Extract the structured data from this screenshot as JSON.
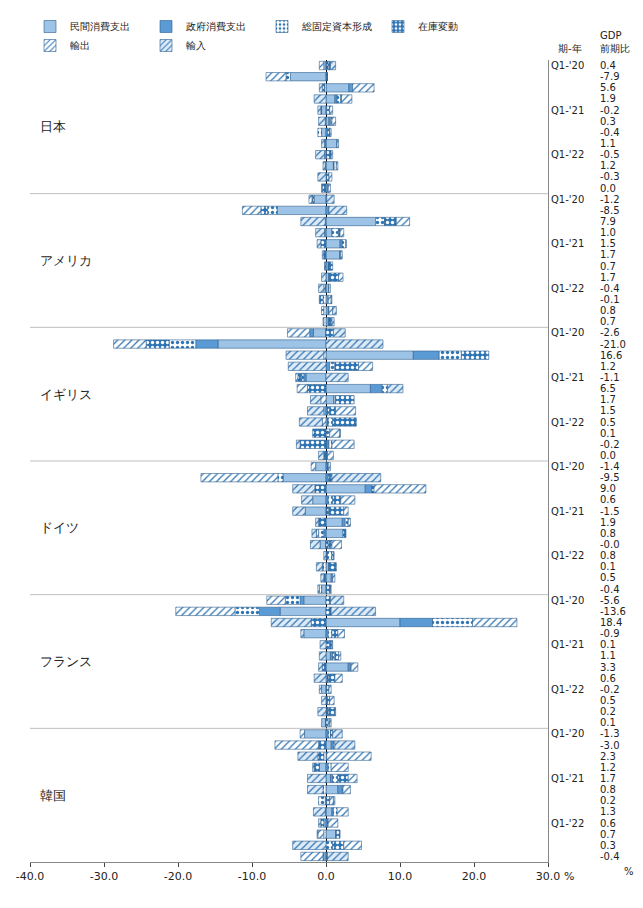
{
  "chart_data": {
    "type": "bar",
    "orientation": "horizontal",
    "stacked": true,
    "grid": false,
    "legend": "top",
    "xlabel": "%",
    "xlim": [
      -40,
      30
    ],
    "xticks": [
      {
        "value": -40,
        "label": "-40.0"
      },
      {
        "value": -30,
        "label": "-30.0"
      },
      {
        "value": -20,
        "label": "-20.0"
      },
      {
        "value": -10,
        "label": "-10.0"
      },
      {
        "value": 0,
        "label": "0.0"
      },
      {
        "value": 10,
        "label": "10.0"
      },
      {
        "value": 20,
        "label": "20.0"
      },
      {
        "value": 30,
        "label": "30.0"
      }
    ],
    "ylabel": "期-年",
    "groups": [
      "日本",
      "アメリカ",
      "イギリス",
      "ドイツ",
      "フランス",
      "韓国"
    ],
    "categories": [
      "Q1-'20",
      null,
      null,
      null,
      "Q1-'21",
      null,
      null,
      null,
      "Q1-'22",
      null,
      null,
      null,
      "Q1-'20",
      null,
      null,
      null,
      "Q1-'21",
      null,
      null,
      null,
      "Q1-'22",
      null,
      null,
      null,
      "Q1-'20",
      null,
      null,
      null,
      "Q1-'21",
      null,
      null,
      null,
      "Q1-'22",
      null,
      null,
      null,
      "Q1-'20",
      null,
      null,
      null,
      "Q1-'21",
      null,
      null,
      null,
      "Q1-'22",
      null,
      null,
      null,
      "Q1-'20",
      null,
      null,
      null,
      "Q1-'21",
      null,
      null,
      null,
      "Q1-'22",
      null,
      null,
      null,
      "Q1-'20",
      null,
      null,
      null,
      "Q1-'21",
      null,
      null,
      null,
      "Q1-'22",
      null,
      null,
      null
    ],
    "series": [
      {
        "name": "民間消費支出",
        "color": "#9dc3e6",
        "values": [
          -0.3,
          -4.8,
          3.1,
          1.2,
          -0.6,
          0.4,
          -0.6,
          1.5,
          -0.2,
          1.0,
          0.0,
          0.3,
          -1.6,
          -6.6,
          6.7,
          0.8,
          1.9,
          1.9,
          0.3,
          0.4,
          0.4,
          0.3,
          0.3,
          0.3,
          -1.7,
          -14.6,
          11.8,
          0.0,
          -2.7,
          6.0,
          1.1,
          -0.3,
          0.2,
          0.0,
          0.1,
          0.0,
          -1.4,
          -5.8,
          5.3,
          -1.8,
          -2.8,
          2.2,
          2.3,
          -0.8,
          0.1,
          0.4,
          0.7,
          -0.6,
          -3.0,
          -6.2,
          10.0,
          -3.0,
          0.0,
          0.6,
          3.0,
          0.2,
          -0.6,
          0.1,
          0.1,
          -0.6,
          -2.9,
          0.7,
          0.0,
          -0.9,
          0.6,
          1.6,
          -0.1,
          0.8,
          -0.3,
          1.3,
          0.0,
          -0.3
        ]
      },
      {
        "name": "政府消費支出",
        "color": "#5b9bd5",
        "values": [
          0.1,
          0.1,
          0.5,
          0.3,
          -0.1,
          0.2,
          0.2,
          0.0,
          0.1,
          0.1,
          0.0,
          0.0,
          0.1,
          0.4,
          -0.1,
          -0.2,
          0.3,
          0.0,
          0.1,
          0.0,
          0.0,
          0.0,
          0.1,
          0.1,
          -0.5,
          -3.0,
          3.5,
          0.5,
          -0.3,
          1.6,
          0.0,
          0.2,
          0.1,
          0.0,
          0.3,
          0.1,
          0.2,
          0.3,
          0.9,
          0.3,
          0.1,
          0.4,
          -0.3,
          0.0,
          0.1,
          0.0,
          0.2,
          0.1,
          -0.5,
          -2.8,
          4.4,
          0.3,
          0.0,
          0.3,
          0.3,
          0.0,
          0.1,
          0.1,
          0.1,
          0.0,
          0.3,
          0.3,
          0.1,
          0.3,
          0.3,
          0.6,
          0.1,
          0.2,
          0.2,
          0.1,
          0.0,
          0.1
        ]
      },
      {
        "name": "総固定資本形成",
        "color": "#ffffff",
        "marker": "dots",
        "values": [
          0.2,
          -0.6,
          -0.2,
          0.5,
          0.1,
          0.2,
          -0.5,
          -0.1,
          0.0,
          0.3,
          0.1,
          0.0,
          -0.2,
          -1.3,
          1.2,
          0.9,
          0.5,
          0.1,
          0.0,
          0.1,
          0.2,
          -0.4,
          -0.3,
          -0.3,
          0.0,
          -3.6,
          3.0,
          0.7,
          -0.3,
          0.7,
          0.2,
          0.3,
          0.6,
          0.5,
          0.4,
          0.1,
          0.1,
          -0.7,
          0.3,
          0.6,
          0.3,
          0.4,
          -0.7,
          0.3,
          0.6,
          -0.4,
          -0.1,
          -0.3,
          -2.0,
          -3.3,
          5.4,
          0.5,
          0.5,
          0.3,
          0.1,
          0.1,
          0.0,
          0.0,
          0.1,
          0.0,
          0.3,
          0.2,
          -0.3,
          0.4,
          0.7,
          -0.4,
          -0.9,
          0.5,
          0.1,
          -0.3,
          0.9,
          0.1
        ]
      },
      {
        "name": "在庫変動",
        "color": "#2e75b6",
        "marker": "dots",
        "values": [
          0.3,
          0.1,
          -0.3,
          0.1,
          0.4,
          -0.1,
          0.3,
          -0.1,
          0.6,
          -0.1,
          0.3,
          -0.5,
          -0.1,
          -0.9,
          1.6,
          0.2,
          -0.7,
          -0.3,
          0.5,
          1.2,
          -0.1,
          -0.5,
          -0.3,
          0.4,
          1.0,
          -3.1,
          3.7,
          3.2,
          -0.5,
          -2.5,
          2.5,
          0.8,
          3.2,
          -1.8,
          -3.5,
          -0.3,
          0.0,
          0.5,
          -1.5,
          1.1,
          2.0,
          -1.0,
          0.4,
          0.5,
          0.2,
          1.0,
          -0.2,
          0.5,
          0.6,
          0.7,
          -2.0,
          0.8,
          0.3,
          0.5,
          -0.5,
          0.9,
          0.3,
          0.3,
          0.9,
          0.3,
          0.3,
          -1.0,
          -0.8,
          -0.7,
          1.4,
          0.1,
          0.4,
          -0.1,
          -0.4,
          0.5,
          1.5,
          -0.1
        ]
      },
      {
        "name": "輸出",
        "color": "#ffffff",
        "marker": "hatch",
        "values": [
          -0.6,
          -2.7,
          2.9,
          1.4,
          0.4,
          0.5,
          0.0,
          0.2,
          0.2,
          0.2,
          0.4,
          0.3,
          -0.4,
          -2.5,
          1.8,
          0.5,
          0.0,
          0.2,
          -0.1,
          0.6,
          -0.2,
          0.4,
          0.5,
          -0.1,
          -3.0,
          -4.4,
          -0.3,
          1.9,
          -0.3,
          -1.4,
          -0.7,
          2.7,
          -0.5,
          1.4,
          3.0,
          0.8,
          -0.6,
          -10.4,
          7.0,
          1.9,
          0.6,
          0.3,
          -0.3,
          1.3,
          0.1,
          -0.1,
          0.3,
          -0.2,
          -2.5,
          -8.0,
          6.0,
          0.9,
          0.1,
          0.3,
          0.9,
          1.0,
          0.3,
          0.6,
          0.1,
          0.2,
          -0.6,
          -5.9,
          6.0,
          2.3,
          1.2,
          1.0,
          0.5,
          1.5,
          1.3,
          -0.8,
          2.4,
          -3.0
        ]
      },
      {
        "name": "輸入",
        "color": "#deebf7",
        "marker": "hatch",
        "values": [
          0.7,
          0.0,
          -0.4,
          -1.6,
          -0.4,
          -0.9,
          0.2,
          -0.4,
          -1.2,
          -0.3,
          -1.1,
          -0.1,
          1.0,
          2.4,
          -3.3,
          -1.2,
          -0.5,
          -0.2,
          -0.1,
          -0.6,
          -0.7,
          0.1,
          0.5,
          0.3,
          1.6,
          7.7,
          -5.1,
          -5.1,
          3.0,
          2.1,
          -1.4,
          -2.2,
          -3.1,
          0.0,
          -0.5,
          -0.7,
          0.3,
          6.6,
          -3.0,
          -1.5,
          -1.7,
          -0.4,
          -0.6,
          -1.3,
          -0.3,
          -0.8,
          -0.4,
          0.1,
          1.8,
          6.0,
          -5.4,
          -0.4,
          -0.8,
          -0.9,
          -0.5,
          -1.6,
          -0.3,
          -0.6,
          -1.1,
          0.2,
          1.3,
          2.7,
          -2.7,
          -0.2,
          -2.5,
          -2.1,
          0.2,
          -1.6,
          -0.3,
          -0.1,
          -4.5,
          2.8
        ]
      }
    ],
    "gdp_growth": {
      "title": [
        "GDP",
        "前期比"
      ],
      "unit": "%",
      "values": [
        0.4,
        -7.9,
        5.6,
        1.9,
        -0.2,
        0.3,
        -0.4,
        1.1,
        -0.5,
        1.2,
        -0.3,
        0,
        -1.2,
        -8.5,
        7.9,
        1.0,
        1.5,
        1.7,
        0.7,
        1.7,
        -0.4,
        -0.1,
        0.8,
        0.7,
        -2.6,
        -21.0,
        16.6,
        1.2,
        -1.1,
        6.5,
        1.7,
        1.5,
        0.5,
        0.1,
        -0.2,
        0,
        -1.4,
        -9.5,
        9.0,
        0.6,
        -1.5,
        1.9,
        0.8,
        0,
        0.8,
        0.1,
        0.5,
        -0.4,
        -5.6,
        -13.6,
        18.4,
        -0.9,
        0.1,
        1.1,
        3.3,
        0.6,
        -0.2,
        0.5,
        0.2,
        0.1,
        -1.3,
        -3.0,
        2.3,
        1.2,
        1.7,
        0.8,
        0.2,
        1.3,
        0.6,
        0.7,
        0.3,
        -0.4
      ],
      "value_labels": [
        "0.4",
        "-7.9",
        "5.6",
        "1.9",
        "-0.2",
        "0.3",
        "-0.4",
        "1.1",
        "-0.5",
        "1.2",
        "-0.3",
        "0.0",
        "-1.2",
        "-8.5",
        "7.9",
        "1.0",
        "1.5",
        "1.7",
        "0.7",
        "1.7",
        "-0.4",
        "-0.1",
        "0.8",
        "0.7",
        "-2.6",
        "-21.0",
        "16.6",
        "1.2",
        "-1.1",
        "6.5",
        "1.7",
        "1.5",
        "0.5",
        "0.1",
        "-0.2",
        "0.0",
        "-1.4",
        "-9.5",
        "9.0",
        "0.6",
        "-1.5",
        "1.9",
        "0.8",
        "-0.0",
        "0.8",
        "0.1",
        "0.5",
        "-0.4",
        "-5.6",
        "-13.6",
        "18.4",
        "-0.9",
        "0.1",
        "1.1",
        "3.3",
        "0.6",
        "-0.2",
        "0.5",
        "0.2",
        "0.1",
        "-1.3",
        "-3.0",
        "2.3",
        "1.2",
        "1.7",
        "0.8",
        "0.2",
        "1.3",
        "0.6",
        "0.7",
        "0.3",
        "-0.4"
      ]
    }
  }
}
